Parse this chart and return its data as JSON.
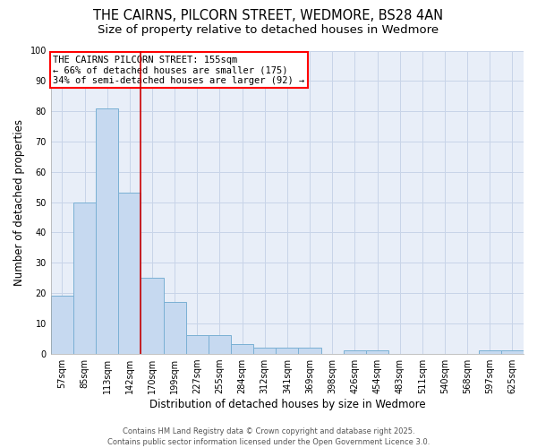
{
  "title_line1": "THE CAIRNS, PILCORN STREET, WEDMORE, BS28 4AN",
  "title_line2": "Size of property relative to detached houses in Wedmore",
  "xlabel": "Distribution of detached houses by size in Wedmore",
  "ylabel": "Number of detached properties",
  "bar_labels": [
    "57sqm",
    "85sqm",
    "113sqm",
    "142sqm",
    "170sqm",
    "199sqm",
    "227sqm",
    "255sqm",
    "284sqm",
    "312sqm",
    "341sqm",
    "369sqm",
    "398sqm",
    "426sqm",
    "454sqm",
    "483sqm",
    "511sqm",
    "540sqm",
    "568sqm",
    "597sqm",
    "625sqm"
  ],
  "bar_values": [
    19,
    50,
    81,
    53,
    25,
    17,
    6,
    6,
    3,
    2,
    2,
    2,
    0,
    1,
    1,
    0,
    0,
    0,
    0,
    1,
    1
  ],
  "bar_color": "#c6d9f0",
  "bar_edge_color": "#7ab0d4",
  "vline_x": 3.5,
  "vline_color": "#cc0000",
  "annotation_line1": "THE CAIRNS PILCORN STREET: 155sqm",
  "annotation_line2": "← 66% of detached houses are smaller (175)",
  "annotation_line3": "34% of semi-detached houses are larger (92) →",
  "annotation_box_color": "white",
  "annotation_box_edge": "red",
  "ylim": [
    0,
    100
  ],
  "yticks": [
    0,
    10,
    20,
    30,
    40,
    50,
    60,
    70,
    80,
    90,
    100
  ],
  "grid_color": "#c8d4e8",
  "bg_color": "#e8eef8",
  "footer_line1": "Contains HM Land Registry data © Crown copyright and database right 2025.",
  "footer_line2": "Contains public sector information licensed under the Open Government Licence 3.0.",
  "title_fontsize": 10.5,
  "subtitle_fontsize": 9.5,
  "axis_label_fontsize": 8.5,
  "tick_fontsize": 7,
  "annotation_fontsize": 7.5,
  "footer_fontsize": 6
}
